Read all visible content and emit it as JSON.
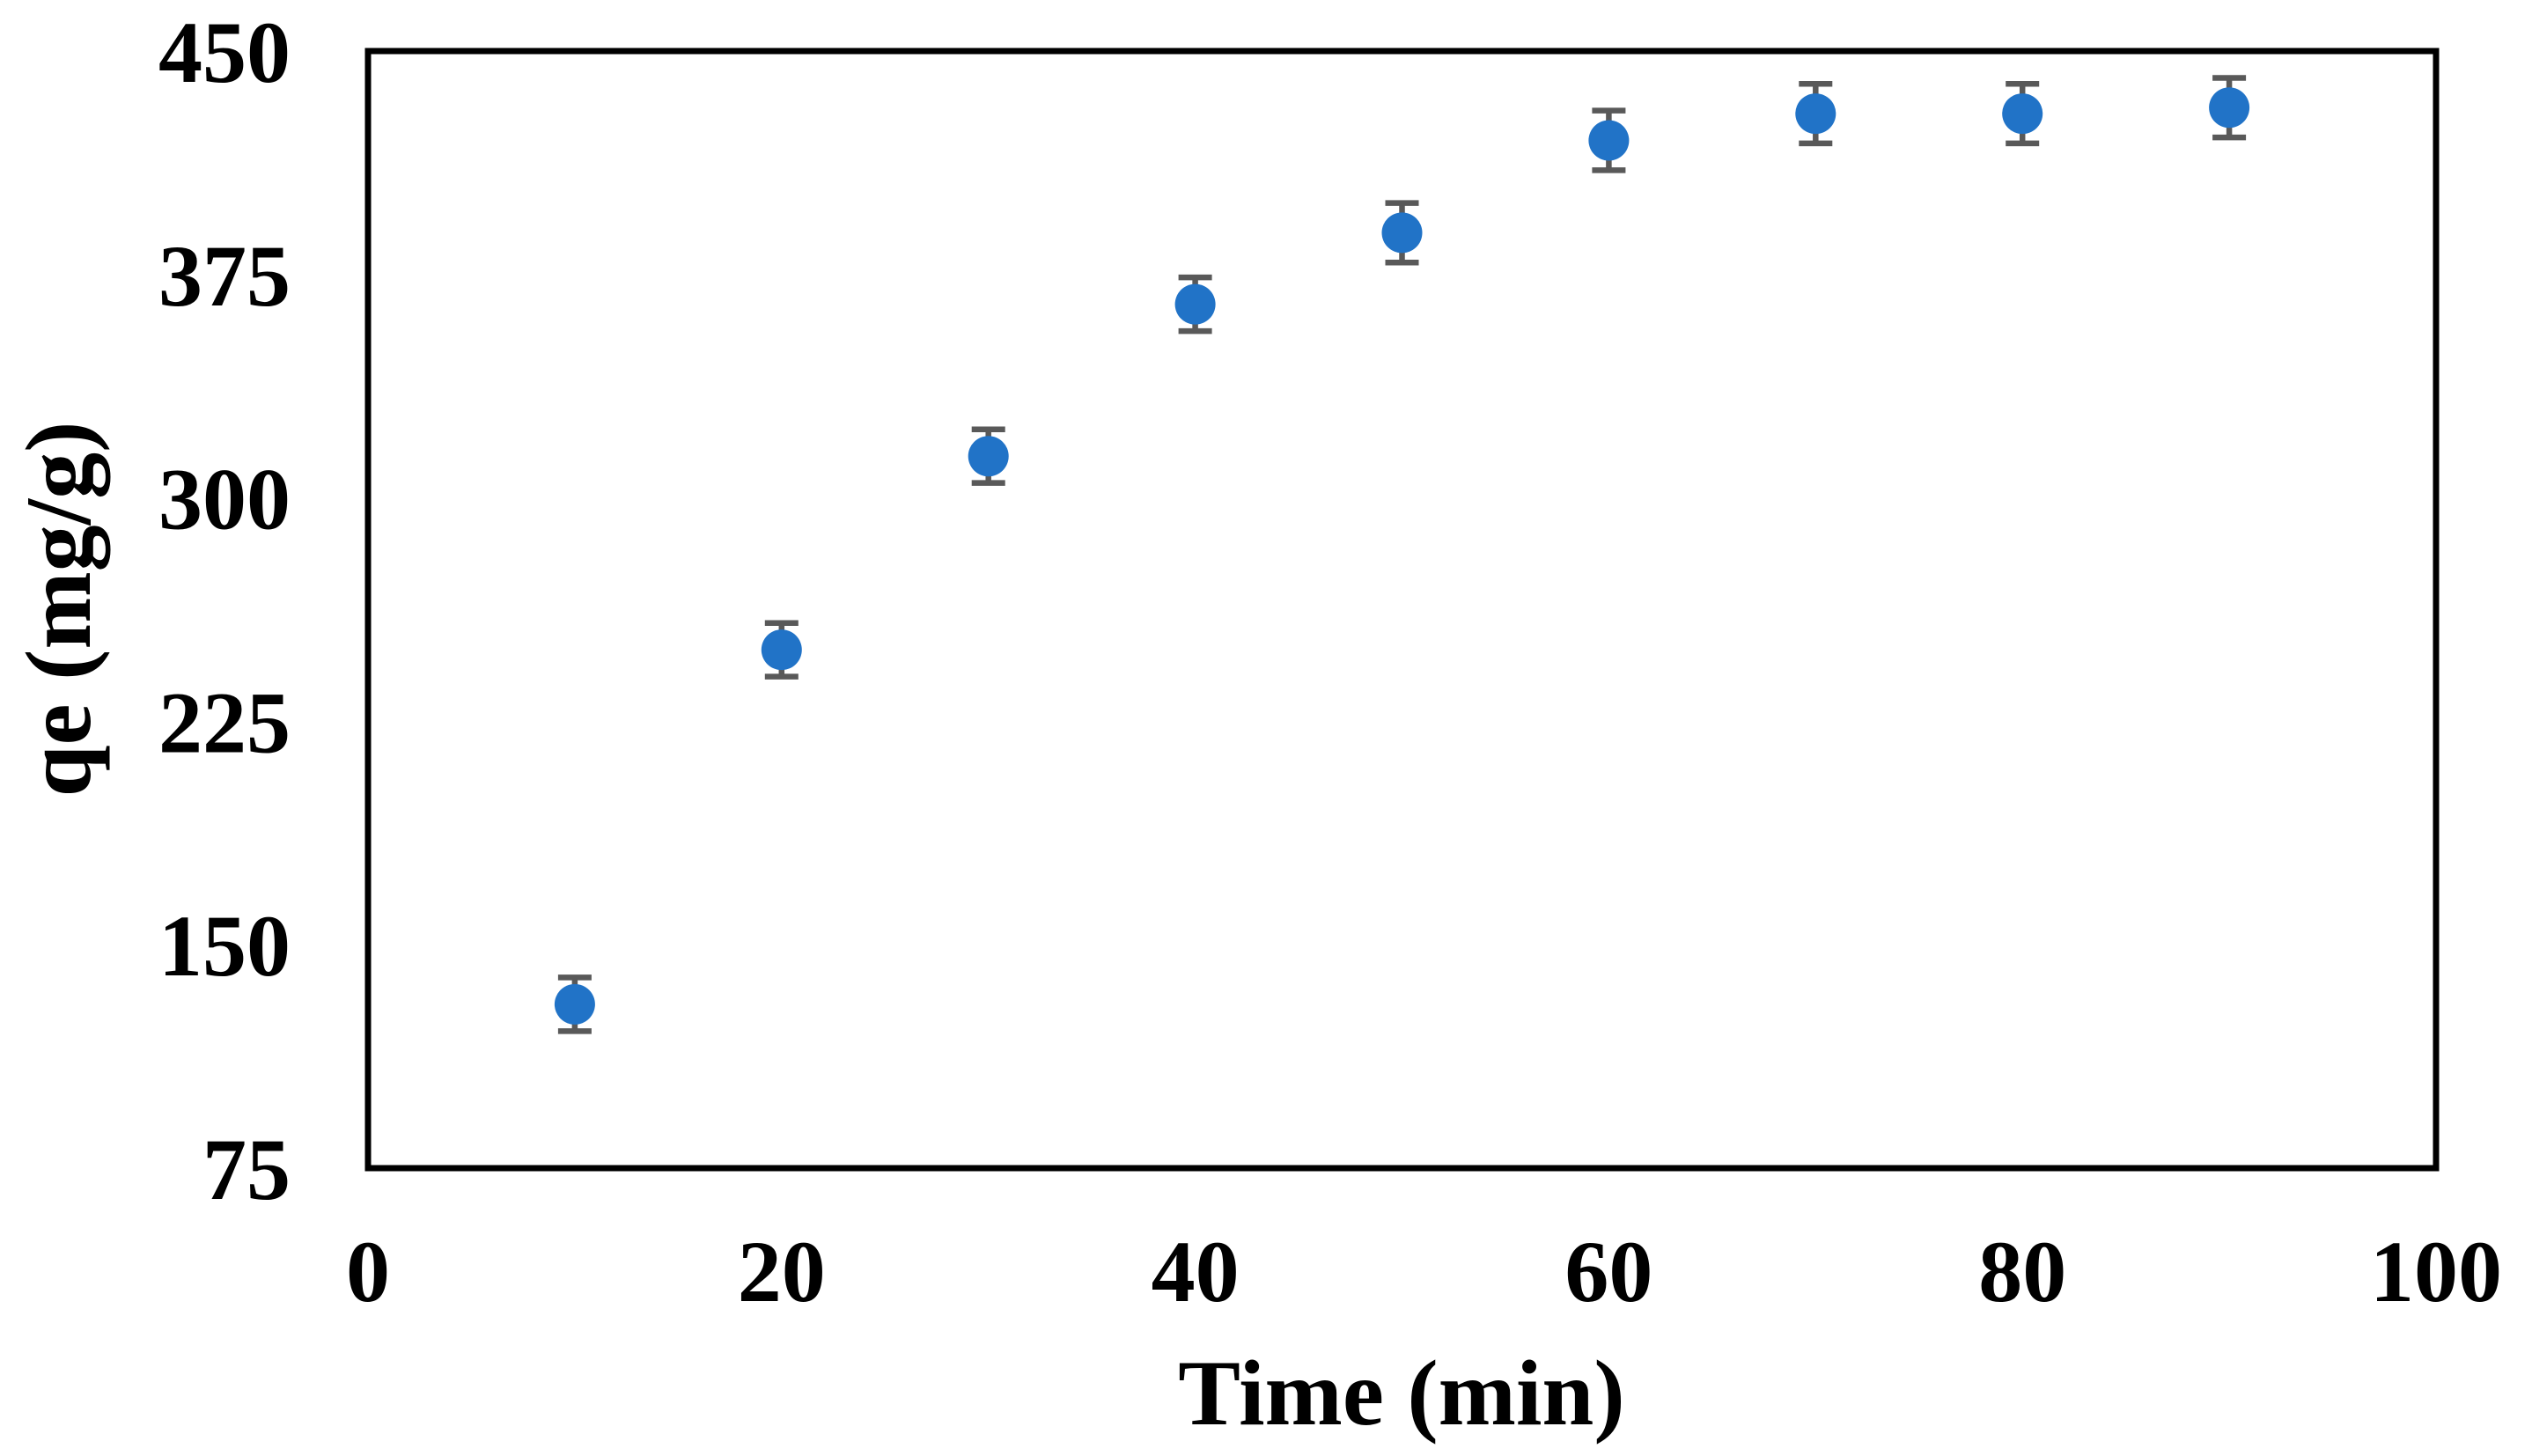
{
  "chart_data": {
    "type": "scatter",
    "title": "",
    "xlabel": "Time (min)",
    "ylabel": "qe (mg/g)",
    "x": [
      10,
      20,
      30,
      40,
      50,
      60,
      70,
      80,
      90
    ],
    "series": [
      {
        "name": "qe",
        "values": [
          130,
          249,
          314,
          365,
          389,
          420,
          429,
          429,
          431
        ],
        "error_bars": [
          9,
          9,
          9,
          9,
          10,
          10,
          10,
          10,
          10
        ]
      }
    ],
    "xlim": [
      0,
      100
    ],
    "ylim": [
      75,
      450
    ],
    "x_ticks": [
      0,
      20,
      40,
      60,
      80,
      100
    ],
    "y_ticks": [
      75,
      150,
      225,
      300,
      375,
      450
    ],
    "grid": false,
    "legend": false,
    "marker": "circle",
    "colors": {
      "marker": "#2173C7",
      "error_bar": "#595959",
      "axis": "#000000",
      "background": "#FFFFFF"
    }
  }
}
